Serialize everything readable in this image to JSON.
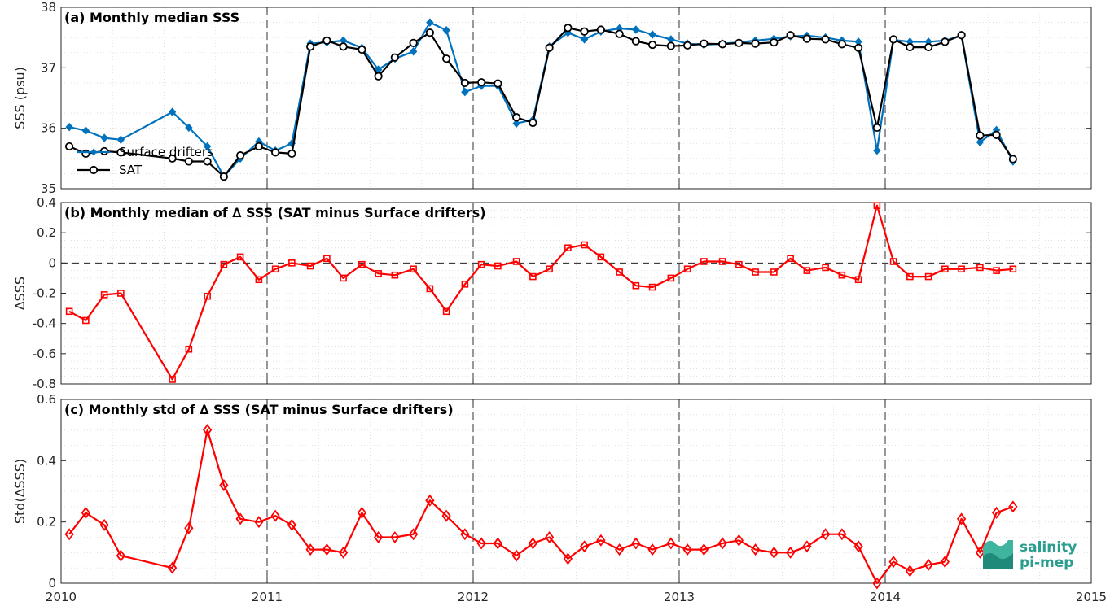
{
  "chart_data": [
    {
      "type": "line",
      "title": "(a) Monthly median SSS",
      "ylabel": "SSS (psu)",
      "xlabel": "",
      "ylim": [
        35,
        38
      ],
      "yticks": [
        "35",
        "36",
        "37",
        "38"
      ],
      "legend_position": "lower-left",
      "grid": true,
      "series": [
        {
          "name": "Surface drifters",
          "color": "#0072bd",
          "marker": "diamond-filled",
          "points": [
            [
              2010.04,
              36.02
            ],
            [
              2010.12,
              35.96
            ],
            [
              2010.21,
              35.84
            ],
            [
              2010.29,
              35.81
            ],
            [
              2010.54,
              36.27
            ],
            [
              2010.62,
              36.01
            ],
            [
              2010.71,
              35.7
            ],
            [
              2010.79,
              35.2
            ],
            [
              2010.87,
              35.5
            ],
            [
              2010.96,
              35.78
            ],
            [
              2011.04,
              35.63
            ],
            [
              2011.12,
              35.75
            ],
            [
              2011.21,
              37.4
            ],
            [
              2011.29,
              37.42
            ],
            [
              2011.37,
              37.45
            ],
            [
              2011.46,
              37.33
            ],
            [
              2011.54,
              36.97
            ],
            [
              2011.62,
              37.15
            ],
            [
              2011.71,
              37.27
            ],
            [
              2011.79,
              37.75
            ],
            [
              2011.87,
              37.62
            ],
            [
              2011.96,
              36.6
            ],
            [
              2012.04,
              36.7
            ],
            [
              2012.12,
              36.7
            ],
            [
              2012.21,
              36.08
            ],
            [
              2012.29,
              36.14
            ],
            [
              2012.37,
              37.35
            ],
            [
              2012.46,
              37.58
            ],
            [
              2012.54,
              37.47
            ],
            [
              2012.62,
              37.6
            ],
            [
              2012.71,
              37.65
            ],
            [
              2012.79,
              37.63
            ],
            [
              2012.87,
              37.55
            ],
            [
              2012.96,
              37.47
            ],
            [
              2013.04,
              37.4
            ],
            [
              2013.12,
              37.38
            ],
            [
              2013.21,
              37.4
            ],
            [
              2013.29,
              37.42
            ],
            [
              2013.37,
              37.45
            ],
            [
              2013.46,
              37.48
            ],
            [
              2013.54,
              37.52
            ],
            [
              2013.62,
              37.53
            ],
            [
              2013.71,
              37.5
            ],
            [
              2013.79,
              37.45
            ],
            [
              2013.87,
              37.43
            ],
            [
              2013.96,
              35.63
            ],
            [
              2014.04,
              37.46
            ],
            [
              2014.12,
              37.43
            ],
            [
              2014.21,
              37.43
            ],
            [
              2014.29,
              37.45
            ],
            [
              2014.37,
              37.53
            ],
            [
              2014.46,
              35.77
            ],
            [
              2014.54,
              35.97
            ],
            [
              2014.62,
              35.45
            ]
          ]
        },
        {
          "name": "SAT",
          "color": "#000000",
          "marker": "circle-open",
          "points": [
            [
              2010.04,
              35.7
            ],
            [
              2010.12,
              35.58
            ],
            [
              2010.21,
              35.62
            ],
            [
              2010.29,
              35.6
            ],
            [
              2010.54,
              35.5
            ],
            [
              2010.62,
              35.45
            ],
            [
              2010.71,
              35.45
            ],
            [
              2010.79,
              35.2
            ],
            [
              2010.87,
              35.55
            ],
            [
              2010.96,
              35.7
            ],
            [
              2011.04,
              35.6
            ],
            [
              2011.12,
              35.58
            ],
            [
              2011.21,
              37.35
            ],
            [
              2011.29,
              37.45
            ],
            [
              2011.37,
              37.35
            ],
            [
              2011.46,
              37.3
            ],
            [
              2011.54,
              36.86
            ],
            [
              2011.62,
              37.17
            ],
            [
              2011.71,
              37.41
            ],
            [
              2011.79,
              37.58
            ],
            [
              2011.87,
              37.15
            ],
            [
              2011.96,
              36.75
            ],
            [
              2012.04,
              36.76
            ],
            [
              2012.12,
              36.74
            ],
            [
              2012.21,
              36.18
            ],
            [
              2012.29,
              36.09
            ],
            [
              2012.37,
              37.33
            ],
            [
              2012.46,
              37.66
            ],
            [
              2012.54,
              37.6
            ],
            [
              2012.62,
              37.63
            ],
            [
              2012.71,
              37.56
            ],
            [
              2012.79,
              37.44
            ],
            [
              2012.87,
              37.38
            ],
            [
              2012.96,
              37.36
            ],
            [
              2013.04,
              37.37
            ],
            [
              2013.12,
              37.4
            ],
            [
              2013.21,
              37.39
            ],
            [
              2013.29,
              37.41
            ],
            [
              2013.37,
              37.4
            ],
            [
              2013.46,
              37.42
            ],
            [
              2013.54,
              37.54
            ],
            [
              2013.62,
              37.48
            ],
            [
              2013.71,
              37.47
            ],
            [
              2013.79,
              37.39
            ],
            [
              2013.87,
              37.33
            ],
            [
              2013.96,
              36.01
            ],
            [
              2014.04,
              37.47
            ],
            [
              2014.12,
              37.34
            ],
            [
              2014.21,
              37.34
            ],
            [
              2014.29,
              37.43
            ],
            [
              2014.37,
              37.54
            ],
            [
              2014.46,
              35.88
            ],
            [
              2014.54,
              35.89
            ],
            [
              2014.62,
              35.49
            ]
          ]
        }
      ]
    },
    {
      "type": "line",
      "title": "(b) Monthly median of ∆ SSS (SAT minus Surface drifters)",
      "ylabel": "∆SSS",
      "ylim": [
        -0.8,
        0.4
      ],
      "yticks": [
        "-0.8",
        "-0.6",
        "-0.4",
        "-0.2",
        "0",
        "0.2",
        "0.4"
      ],
      "zero_line": true,
      "grid": true,
      "series": [
        {
          "color": "#ff0000",
          "marker": "square-open",
          "points": [
            [
              2010.04,
              -0.32
            ],
            [
              2010.12,
              -0.38
            ],
            [
              2010.21,
              -0.21
            ],
            [
              2010.29,
              -0.2
            ],
            [
              2010.54,
              -0.77
            ],
            [
              2010.62,
              -0.57
            ],
            [
              2010.71,
              -0.22
            ],
            [
              2010.79,
              -0.01
            ],
            [
              2010.87,
              0.04
            ],
            [
              2010.96,
              -0.11
            ],
            [
              2011.04,
              -0.04
            ],
            [
              2011.12,
              0.0
            ],
            [
              2011.21,
              -0.02
            ],
            [
              2011.29,
              0.03
            ],
            [
              2011.37,
              -0.1
            ],
            [
              2011.46,
              -0.01
            ],
            [
              2011.54,
              -0.07
            ],
            [
              2011.62,
              -0.08
            ],
            [
              2011.71,
              -0.04
            ],
            [
              2011.79,
              -0.17
            ],
            [
              2011.87,
              -0.32
            ],
            [
              2011.96,
              -0.14
            ],
            [
              2012.04,
              -0.01
            ],
            [
              2012.12,
              -0.02
            ],
            [
              2012.21,
              0.01
            ],
            [
              2012.29,
              -0.09
            ],
            [
              2012.37,
              -0.04
            ],
            [
              2012.46,
              0.1
            ],
            [
              2012.54,
              0.12
            ],
            [
              2012.62,
              0.04
            ],
            [
              2012.71,
              -0.06
            ],
            [
              2012.79,
              -0.15
            ],
            [
              2012.87,
              -0.16
            ],
            [
              2012.96,
              -0.1
            ],
            [
              2013.04,
              -0.04
            ],
            [
              2013.12,
              0.01
            ],
            [
              2013.21,
              0.01
            ],
            [
              2013.29,
              -0.01
            ],
            [
              2013.37,
              -0.06
            ],
            [
              2013.46,
              -0.06
            ],
            [
              2013.54,
              0.03
            ],
            [
              2013.62,
              -0.05
            ],
            [
              2013.71,
              -0.03
            ],
            [
              2013.79,
              -0.08
            ],
            [
              2013.87,
              -0.11
            ],
            [
              2013.96,
              0.38
            ],
            [
              2014.04,
              0.01
            ],
            [
              2014.12,
              -0.09
            ],
            [
              2014.21,
              -0.09
            ],
            [
              2014.29,
              -0.04
            ],
            [
              2014.37,
              -0.04
            ],
            [
              2014.46,
              -0.03
            ],
            [
              2014.54,
              -0.05
            ],
            [
              2014.62,
              -0.04
            ]
          ]
        }
      ]
    },
    {
      "type": "line",
      "title": "(c) Monthly std of ∆ SSS (SAT minus Surface drifters)",
      "ylabel": "Std(∆SSS)",
      "xlabel": "",
      "ylim": [
        0,
        0.6
      ],
      "yticks": [
        "0",
        "0.2",
        "0.4",
        "0.6"
      ],
      "xlim": [
        2010,
        2015
      ],
      "xticks": [
        "2010",
        "2011",
        "2012",
        "2013",
        "2014",
        "2015"
      ],
      "grid": true,
      "series": [
        {
          "color": "#ff0000",
          "marker": "diamond-open",
          "points": [
            [
              2010.04,
              0.16
            ],
            [
              2010.12,
              0.23
            ],
            [
              2010.21,
              0.19
            ],
            [
              2010.29,
              0.09
            ],
            [
              2010.54,
              0.05
            ],
            [
              2010.62,
              0.18
            ],
            [
              2010.71,
              0.5
            ],
            [
              2010.79,
              0.32
            ],
            [
              2010.87,
              0.21
            ],
            [
              2010.96,
              0.2
            ],
            [
              2011.04,
              0.22
            ],
            [
              2011.12,
              0.19
            ],
            [
              2011.21,
              0.11
            ],
            [
              2011.29,
              0.11
            ],
            [
              2011.37,
              0.1
            ],
            [
              2011.46,
              0.23
            ],
            [
              2011.54,
              0.15
            ],
            [
              2011.62,
              0.15
            ],
            [
              2011.71,
              0.16
            ],
            [
              2011.79,
              0.27
            ],
            [
              2011.87,
              0.22
            ],
            [
              2011.96,
              0.16
            ],
            [
              2012.04,
              0.13
            ],
            [
              2012.12,
              0.13
            ],
            [
              2012.21,
              0.09
            ],
            [
              2012.29,
              0.13
            ],
            [
              2012.37,
              0.15
            ],
            [
              2012.46,
              0.08
            ],
            [
              2012.54,
              0.12
            ],
            [
              2012.62,
              0.14
            ],
            [
              2012.71,
              0.11
            ],
            [
              2012.79,
              0.13
            ],
            [
              2012.87,
              0.11
            ],
            [
              2012.96,
              0.13
            ],
            [
              2013.04,
              0.11
            ],
            [
              2013.12,
              0.11
            ],
            [
              2013.21,
              0.13
            ],
            [
              2013.29,
              0.14
            ],
            [
              2013.37,
              0.11
            ],
            [
              2013.46,
              0.1
            ],
            [
              2013.54,
              0.1
            ],
            [
              2013.62,
              0.12
            ],
            [
              2013.71,
              0.16
            ],
            [
              2013.79,
              0.16
            ],
            [
              2013.87,
              0.12
            ],
            [
              2013.96,
              0.0
            ],
            [
              2014.04,
              0.07
            ],
            [
              2014.12,
              0.04
            ],
            [
              2014.21,
              0.06
            ],
            [
              2014.29,
              0.07
            ],
            [
              2014.37,
              0.21
            ],
            [
              2014.46,
              0.1
            ],
            [
              2014.54,
              0.23
            ],
            [
              2014.62,
              0.25
            ]
          ]
        }
      ]
    }
  ],
  "logo": {
    "line1": "salinity",
    "line2": "pi-mep"
  }
}
